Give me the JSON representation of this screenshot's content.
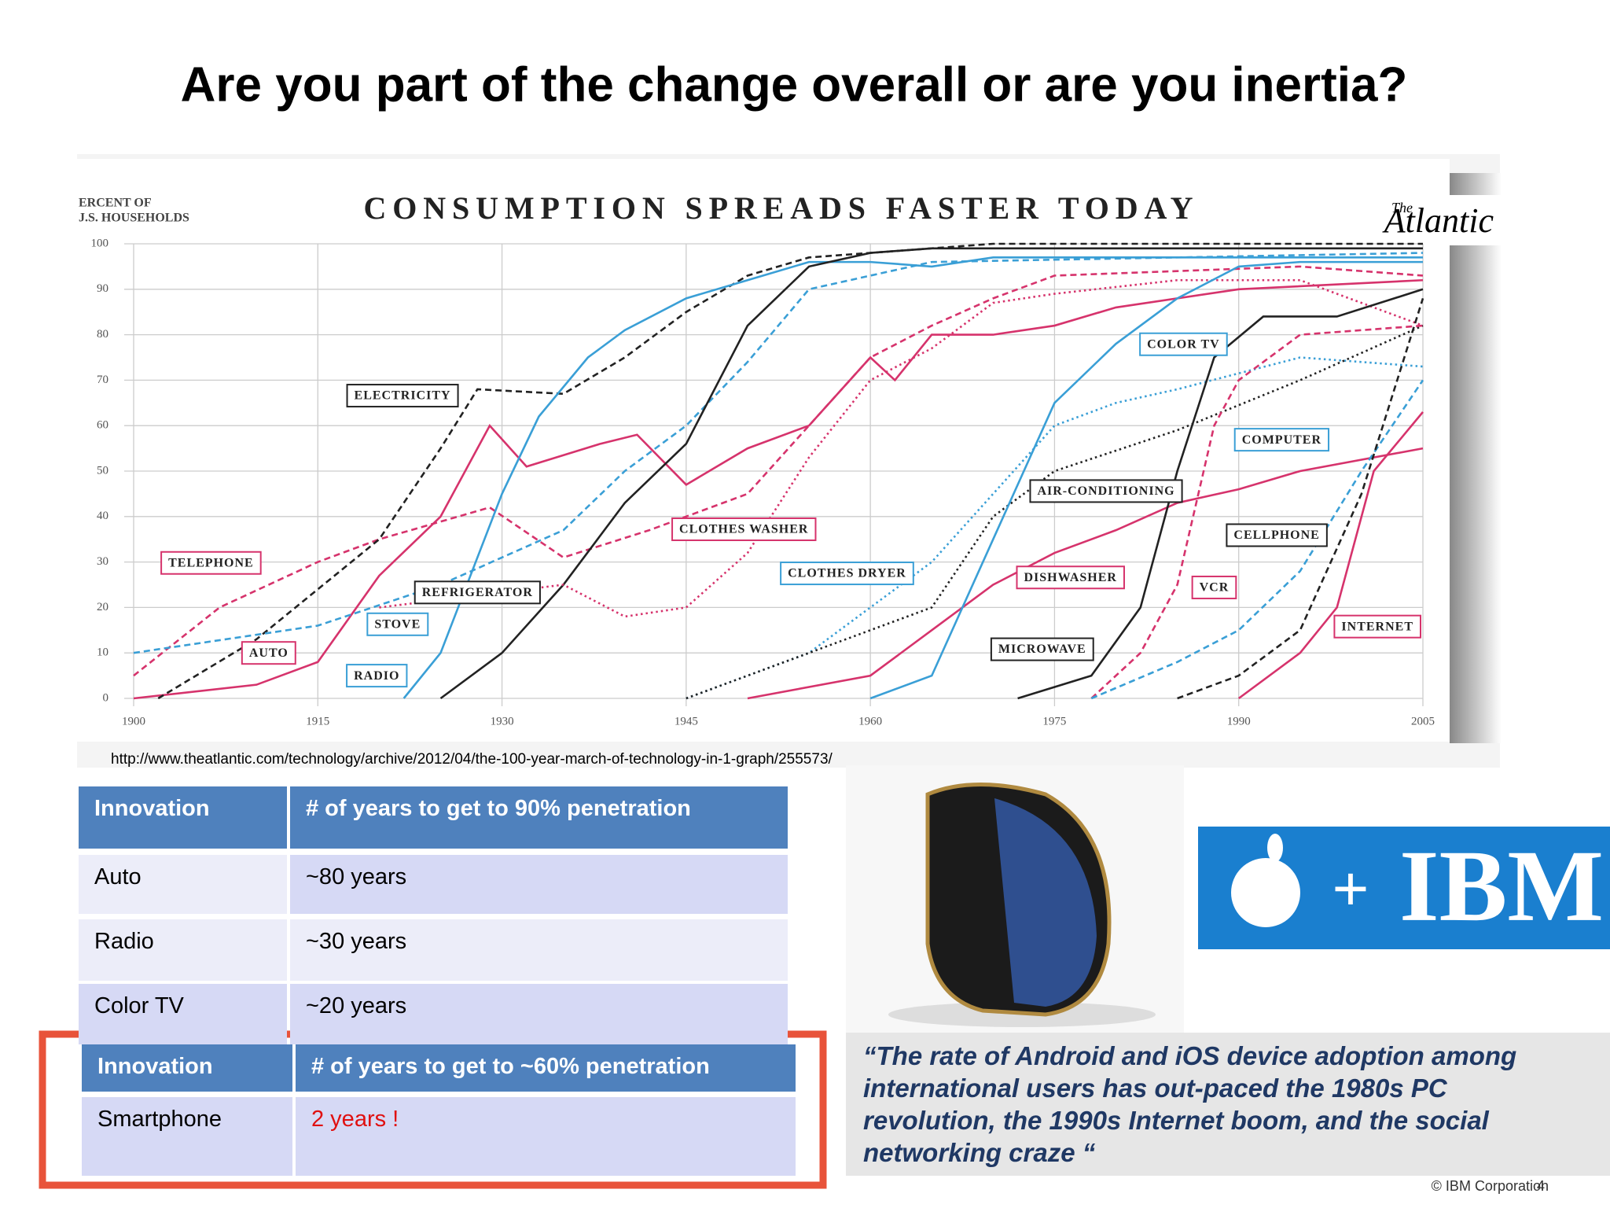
{
  "slide_title": "Are you part of the change overall or are you inertia?",
  "chart_data": {
    "type": "line",
    "title": "CONSUMPTION SPREADS FASTER TODAY",
    "y_label": [
      "ERCENT OF",
      "J.S. HOUSEHOLDS"
    ],
    "brand": [
      "The",
      "Atlantic"
    ],
    "xlim": [
      1900,
      2005
    ],
    "xticks": [
      1900,
      1915,
      1930,
      1945,
      1960,
      1975,
      1990,
      2005
    ],
    "ylim": [
      0,
      100
    ],
    "yticks": [
      0,
      10,
      20,
      30,
      40,
      50,
      60,
      70,
      80,
      90,
      100
    ],
    "grid": true,
    "series": [
      {
        "name": "TELEPHONE",
        "color": "#d6336c",
        "dash": "dashed",
        "x": [
          1900,
          1907,
          1915,
          1920,
          1929,
          1935,
          1942,
          1950,
          1955,
          1960,
          1965,
          1970,
          1975,
          1985,
          1995,
          2005
        ],
        "values": [
          5,
          20,
          30,
          35,
          42,
          31,
          37,
          45,
          60,
          75,
          82,
          88,
          93,
          94,
          95,
          93
        ]
      },
      {
        "name": "AUTO",
        "color": "#d6336c",
        "dash": "solid",
        "x": [
          1900,
          1910,
          1915,
          1920,
          1925,
          1929,
          1932,
          1938,
          1941,
          1945,
          1950,
          1955,
          1960,
          1962,
          1965,
          1970,
          1975,
          1980,
          1990,
          2005
        ],
        "values": [
          0,
          3,
          8,
          27,
          40,
          60,
          51,
          56,
          58,
          47,
          55,
          60,
          75,
          70,
          80,
          80,
          82,
          86,
          90,
          92
        ]
      },
      {
        "name": "ELECTRICITY",
        "color": "#222222",
        "dash": "dashed",
        "x": [
          1902,
          1910,
          1920,
          1925,
          1928,
          1935,
          1940,
          1945,
          1950,
          1955,
          1960,
          1970,
          2005
        ],
        "values": [
          0,
          13,
          35,
          55,
          68,
          67,
          75,
          85,
          93,
          97,
          98,
          100,
          100
        ]
      },
      {
        "name": "RADIO",
        "color": "#3a9fd6",
        "dash": "solid",
        "x": [
          1922,
          1925,
          1930,
          1933,
          1937,
          1940,
          1945,
          1950,
          1955,
          1960,
          1965,
          1970,
          2005
        ],
        "values": [
          0,
          10,
          45,
          62,
          75,
          81,
          88,
          92,
          96,
          96,
          95,
          97,
          97
        ]
      },
      {
        "name": "STOVE",
        "color": "#3a9fd6",
        "dash": "dashed",
        "x": [
          1900,
          1915,
          1925,
          1935,
          1940,
          1945,
          1950,
          1955,
          1965,
          2005
        ],
        "values": [
          10,
          16,
          25,
          37,
          50,
          60,
          74,
          90,
          96,
          98
        ]
      },
      {
        "name": "REFRIGERATOR",
        "color": "#222222",
        "dash": "solid",
        "x": [
          1925,
          1930,
          1935,
          1940,
          1945,
          1950,
          1955,
          1960,
          1965,
          2005
        ],
        "values": [
          0,
          10,
          25,
          43,
          56,
          82,
          95,
          98,
          99,
          99
        ]
      },
      {
        "name": "CLOTHES WASHER",
        "color": "#d6336c",
        "dash": "dotted",
        "x": [
          1920,
          1935,
          1940,
          1945,
          1950,
          1955,
          1960,
          1965,
          1970,
          1975,
          1985,
          1995,
          2005
        ],
        "values": [
          20,
          25,
          18,
          20,
          32,
          53,
          70,
          77,
          87,
          89,
          92,
          92,
          82
        ]
      },
      {
        "name": "CLOTHES DRYER",
        "color": "#3a9fd6",
        "dash": "dotted",
        "x": [
          1945,
          1955,
          1960,
          1965,
          1970,
          1975,
          1980,
          1985,
          1995,
          2005
        ],
        "values": [
          0,
          10,
          20,
          30,
          45,
          60,
          65,
          68,
          75,
          73
        ]
      },
      {
        "name": "AIR-CONDITIONING",
        "color": "#222222",
        "dash": "dotted",
        "x": [
          1945,
          1955,
          1965,
          1970,
          1975,
          1985,
          1995,
          2005
        ],
        "values": [
          0,
          10,
          20,
          40,
          50,
          59,
          70,
          82
        ]
      },
      {
        "name": "DISHWASHER",
        "color": "#d6336c",
        "dash": "solid",
        "x": [
          1950,
          1960,
          1965,
          1970,
          1975,
          1980,
          1985,
          1990,
          1995,
          2005
        ],
        "values": [
          0,
          5,
          15,
          25,
          32,
          37,
          43,
          46,
          50,
          55
        ]
      },
      {
        "name": "COLOR TV",
        "color": "#3a9fd6",
        "dash": "solid",
        "x": [
          1960,
          1965,
          1970,
          1975,
          1980,
          1985,
          1990,
          1995,
          2005
        ],
        "values": [
          0,
          5,
          35,
          65,
          78,
          88,
          95,
          96,
          96
        ]
      },
      {
        "name": "MICROWAVE",
        "color": "#222222",
        "dash": "solid",
        "x": [
          1972,
          1978,
          1982,
          1985,
          1988,
          1992,
          1998,
          2005
        ],
        "values": [
          0,
          5,
          20,
          50,
          75,
          84,
          84,
          90
        ]
      },
      {
        "name": "VCR",
        "color": "#d6336c",
        "dash": "dashed",
        "x": [
          1978,
          1982,
          1985,
          1988,
          1990,
          1995,
          2005
        ],
        "values": [
          0,
          10,
          25,
          60,
          70,
          80,
          82
        ]
      },
      {
        "name": "COMPUTER",
        "color": "#3a9fd6",
        "dash": "dashed",
        "x": [
          1978,
          1985,
          1990,
          1995,
          2000,
          2005
        ],
        "values": [
          0,
          8,
          15,
          28,
          50,
          70
        ]
      },
      {
        "name": "CELLPHONE",
        "color": "#222222",
        "dash": "dashed",
        "x": [
          1985,
          1990,
          1995,
          2000,
          2005
        ],
        "values": [
          0,
          5,
          15,
          45,
          88
        ]
      },
      {
        "name": "INTERNET",
        "color": "#d6336c",
        "dash": "solid",
        "x": [
          1990,
          1995,
          1998,
          2001,
          2005
        ],
        "values": [
          0,
          10,
          20,
          50,
          63
        ]
      }
    ]
  },
  "source_url": "http://www.theatlantic.com/technology/archive/2012/04/the-100-year-march-of-technology-in-1-graph/255573/",
  "table_90": {
    "header": [
      "Innovation",
      "# of years to get to 90% penetration"
    ],
    "rows": [
      [
        "Auto",
        "~80 years"
      ],
      [
        "Radio",
        "~30 years"
      ],
      [
        "Color TV",
        "~20 years"
      ]
    ]
  },
  "table_60": {
    "header": [
      "Innovation",
      "# of years to get to ~60% penetration"
    ],
    "rows": [
      [
        "Smartphone",
        "2 years !"
      ]
    ]
  },
  "logo": {
    "plus": "+",
    "ibm": "IBM"
  },
  "quote": "“The rate of Android and iOS device adoption among international users has out-paced the 1980s PC revolution, the 1990s Internet boom, and the social networking craze “",
  "footer": {
    "copyright": "© IBM Corporation",
    "page": "4"
  }
}
